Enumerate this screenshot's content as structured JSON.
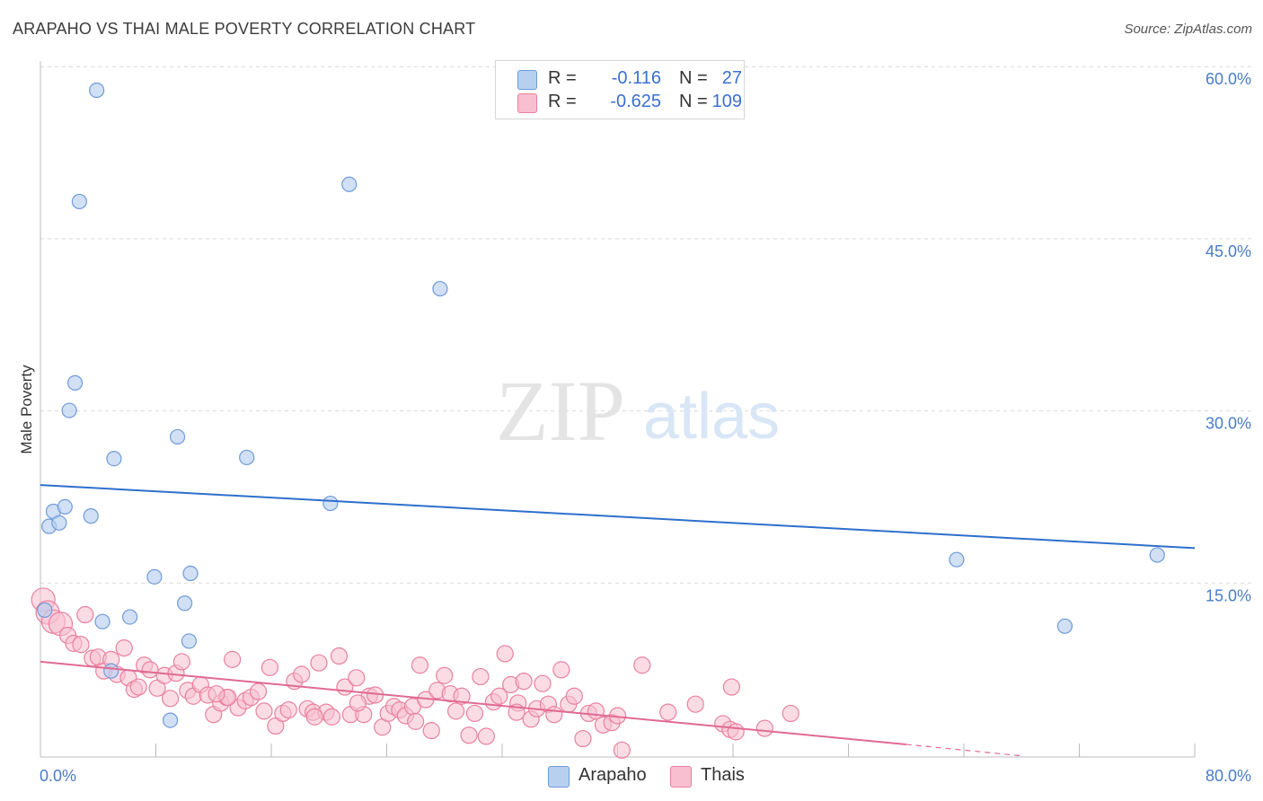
{
  "title": "ARAPAHO VS THAI MALE POVERTY CORRELATION CHART",
  "source": "Source: ZipAtlas.com",
  "watermark": {
    "zip": "ZIP",
    "atlas": "atlas"
  },
  "legend": {
    "rows": [
      {
        "r_label": "R =",
        "r_value": "-0.116",
        "n_label": "N =",
        "n_value": "27"
      },
      {
        "r_label": "R =",
        "r_value": "-0.625",
        "n_label": "N =",
        "n_value": "109"
      }
    ]
  },
  "bottom_legend": {
    "series1": "Arapaho",
    "series2": "Thais"
  },
  "colors": {
    "arapaho_fill": "#b8d0f0",
    "arapaho_stroke": "#6f9bd9",
    "arapaho_line": "#2e6fcc",
    "thai_fill": "#f7bfd0",
    "thai_stroke": "#e8819f",
    "thai_line": "#e06a93",
    "tick_text": "#4a7cc7",
    "grid": "#d9d9d9"
  },
  "chart_data": {
    "type": "scatter",
    "title": "ARAPAHO VS THAI MALE POVERTY CORRELATION CHART",
    "xlabel": "",
    "ylabel": "Male Poverty",
    "xlim": [
      0,
      80
    ],
    "ylim": [
      0,
      60
    ],
    "x_tick_labels": [
      "0.0%",
      "80.0%"
    ],
    "y_ticks": [
      15,
      30,
      45,
      60
    ],
    "y_tick_labels": [
      "15.0%",
      "30.0%",
      "45.0%",
      "60.0%"
    ],
    "grid": true,
    "series": [
      {
        "name": "Arapaho",
        "R": -0.116,
        "N": 27,
        "trend": {
          "x0": 0,
          "y0": 23.7,
          "x1": 80,
          "y1": 18.2
        },
        "points": [
          [
            0.3,
            12.8
          ],
          [
            0.6,
            20.1
          ],
          [
            0.9,
            21.4
          ],
          [
            1.3,
            20.4
          ],
          [
            1.7,
            21.8
          ],
          [
            2.0,
            30.2
          ],
          [
            2.4,
            32.6
          ],
          [
            2.7,
            48.4
          ],
          [
            3.5,
            21.0
          ],
          [
            3.9,
            58.1
          ],
          [
            4.3,
            11.8
          ],
          [
            4.9,
            7.5
          ],
          [
            5.1,
            26.0
          ],
          [
            6.2,
            12.2
          ],
          [
            7.9,
            15.7
          ],
          [
            9.0,
            3.2
          ],
          [
            9.5,
            27.9
          ],
          [
            10.0,
            13.4
          ],
          [
            10.3,
            10.1
          ],
          [
            10.4,
            16.0
          ],
          [
            14.3,
            26.1
          ],
          [
            20.1,
            22.1
          ],
          [
            21.4,
            49.9
          ],
          [
            27.7,
            40.8
          ],
          [
            63.5,
            17.2
          ],
          [
            71.0,
            11.4
          ],
          [
            77.4,
            17.6
          ]
        ]
      },
      {
        "name": "Thais",
        "R": -0.625,
        "N": 109,
        "trend": {
          "x0": 0,
          "y0": 8.3,
          "x1": 60,
          "y1": 1.1,
          "dashed_to_x": 68,
          "dashed_to_y": 0.1
        },
        "points": [
          [
            0.2,
            13.7
          ],
          [
            0.5,
            12.6
          ],
          [
            0.9,
            11.8
          ],
          [
            1.4,
            11.6
          ],
          [
            1.9,
            10.6
          ],
          [
            2.3,
            9.9
          ],
          [
            2.8,
            9.8
          ],
          [
            3.1,
            12.4
          ],
          [
            3.6,
            8.6
          ],
          [
            4.0,
            8.7
          ],
          [
            4.4,
            7.5
          ],
          [
            4.9,
            8.5
          ],
          [
            5.3,
            7.2
          ],
          [
            5.8,
            9.5
          ],
          [
            6.1,
            6.9
          ],
          [
            6.5,
            5.9
          ],
          [
            6.8,
            6.1
          ],
          [
            7.2,
            8.0
          ],
          [
            7.6,
            7.6
          ],
          [
            8.1,
            6.0
          ],
          [
            8.6,
            7.1
          ],
          [
            9.0,
            5.1
          ],
          [
            9.4,
            7.3
          ],
          [
            9.8,
            8.3
          ],
          [
            10.2,
            5.8
          ],
          [
            10.6,
            5.3
          ],
          [
            11.1,
            6.3
          ],
          [
            11.6,
            5.4
          ],
          [
            12.0,
            3.7
          ],
          [
            12.5,
            4.7
          ],
          [
            12.9,
            5.2
          ],
          [
            13.3,
            8.5
          ],
          [
            13.7,
            4.3
          ],
          [
            14.2,
            4.9
          ],
          [
            14.6,
            5.2
          ],
          [
            15.1,
            5.7
          ],
          [
            15.5,
            4.0
          ],
          [
            15.9,
            7.8
          ],
          [
            16.3,
            2.7
          ],
          [
            16.8,
            3.8
          ],
          [
            17.2,
            4.1
          ],
          [
            17.6,
            6.6
          ],
          [
            18.1,
            7.2
          ],
          [
            18.5,
            4.2
          ],
          [
            18.9,
            3.9
          ],
          [
            19.3,
            8.2
          ],
          [
            19.8,
            3.9
          ],
          [
            20.2,
            3.5
          ],
          [
            20.7,
            8.8
          ],
          [
            21.1,
            6.1
          ],
          [
            21.5,
            3.7
          ],
          [
            21.9,
            6.9
          ],
          [
            22.4,
            3.7
          ],
          [
            22.8,
            5.3
          ],
          [
            23.2,
            5.4
          ],
          [
            23.7,
            2.6
          ],
          [
            24.1,
            3.8
          ],
          [
            24.5,
            4.4
          ],
          [
            24.9,
            4.1
          ],
          [
            25.3,
            3.6
          ],
          [
            25.8,
            4.4
          ],
          [
            26.3,
            8.0
          ],
          [
            26.7,
            5.0
          ],
          [
            27.1,
            2.3
          ],
          [
            27.5,
            5.8
          ],
          [
            28.0,
            7.1
          ],
          [
            28.4,
            5.5
          ],
          [
            28.8,
            4.0
          ],
          [
            29.2,
            5.3
          ],
          [
            29.7,
            1.9
          ],
          [
            30.1,
            3.8
          ],
          [
            30.5,
            7.0
          ],
          [
            30.9,
            1.8
          ],
          [
            31.4,
            4.8
          ],
          [
            31.8,
            5.3
          ],
          [
            32.2,
            9.0
          ],
          [
            32.6,
            6.3
          ],
          [
            33.1,
            4.7
          ],
          [
            33.5,
            6.6
          ],
          [
            34.0,
            3.3
          ],
          [
            34.4,
            4.2
          ],
          [
            34.8,
            6.4
          ],
          [
            35.2,
            4.6
          ],
          [
            35.6,
            3.7
          ],
          [
            36.1,
            7.6
          ],
          [
            36.6,
            4.6
          ],
          [
            37.0,
            5.3
          ],
          [
            37.6,
            1.6
          ],
          [
            38.0,
            3.8
          ],
          [
            38.5,
            4.0
          ],
          [
            39.0,
            2.8
          ],
          [
            39.6,
            3.0
          ],
          [
            40.0,
            3.6
          ],
          [
            40.3,
            0.6
          ],
          [
            41.7,
            8.0
          ],
          [
            43.5,
            3.9
          ],
          [
            45.4,
            4.6
          ],
          [
            47.3,
            2.9
          ],
          [
            47.8,
            2.4
          ],
          [
            47.9,
            6.1
          ],
          [
            48.2,
            2.2
          ],
          [
            50.2,
            2.5
          ],
          [
            52.0,
            3.8
          ],
          [
            13.0,
            5.2
          ],
          [
            19.0,
            3.5
          ],
          [
            22.0,
            4.7
          ],
          [
            26.0,
            3.1
          ],
          [
            33.0,
            3.9
          ],
          [
            12.2,
            5.5
          ]
        ]
      }
    ]
  }
}
